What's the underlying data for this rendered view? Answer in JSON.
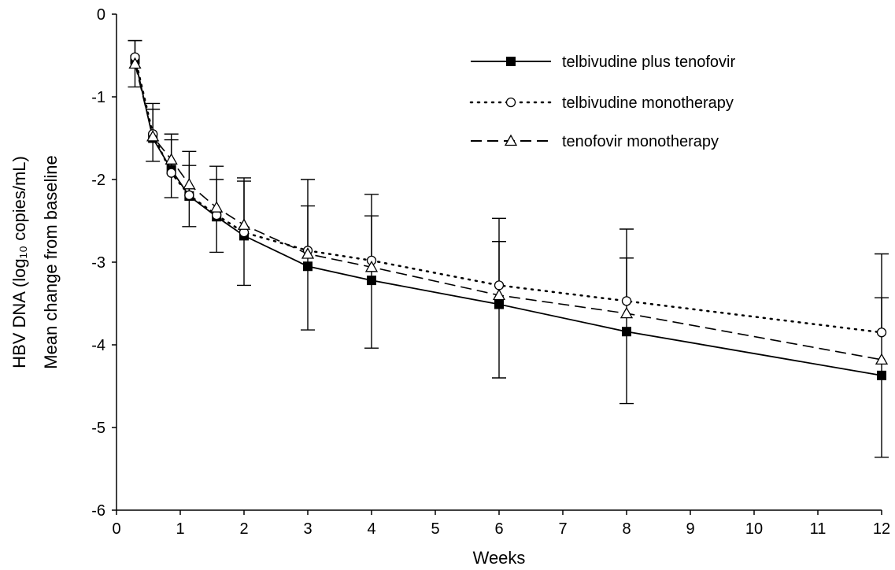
{
  "chart_data": {
    "type": "line",
    "title": "",
    "xlabel": "Weeks",
    "ylabel_line1": "HBV DNA (log₁₀ copies/mL)",
    "ylabel_line2": "Mean change from baseline",
    "xlim": [
      0,
      12
    ],
    "ylim": [
      -6,
      0
    ],
    "x_ticks": [
      0,
      1,
      2,
      3,
      4,
      5,
      6,
      7,
      8,
      9,
      10,
      11,
      12
    ],
    "y_ticks": [
      0,
      -1,
      -2,
      -3,
      -4,
      -5,
      -6
    ],
    "x_tick_labels": [
      "0",
      "1",
      "2",
      "3",
      "4",
      "5",
      "6",
      "7",
      "8",
      "9",
      "10",
      "11",
      "12"
    ],
    "y_tick_labels": [
      "0",
      "-1",
      "-2",
      "-3",
      "-4",
      "-5",
      "-6"
    ],
    "grid": false,
    "legend_position": "top-right",
    "series": [
      {
        "name": "telbivudine plus tenofovir",
        "line_style": "solid",
        "marker": "filled-square",
        "color": "#000000",
        "x": [
          0.29,
          0.57,
          0.86,
          1.14,
          1.57,
          2,
          3,
          4,
          6,
          8,
          12
        ],
        "y": [
          -0.55,
          -1.5,
          -1.88,
          -2.2,
          -2.45,
          -2.68,
          -3.05,
          -3.22,
          -3.51,
          -3.84,
          -4.37
        ],
        "error_low": [
          -0.88,
          -1.78,
          -2.22,
          -2.57,
          -2.88,
          -3.28,
          -3.82,
          -4.04,
          -4.4,
          -4.71,
          -5.36
        ],
        "error_high": [
          -0.32,
          -1.15,
          -1.52,
          -1.83,
          -2.0,
          -2.02,
          -2.32,
          -2.44,
          -2.75,
          -2.95,
          -3.43
        ]
      },
      {
        "name": "telbivudine monotherapy",
        "line_style": "dotted",
        "marker": "open-circle",
        "color": "#000000",
        "x": [
          0.29,
          0.57,
          0.86,
          1.14,
          1.57,
          2,
          3,
          4,
          6,
          8,
          12
        ],
        "y": [
          -0.52,
          -1.45,
          -1.92,
          -2.19,
          -2.43,
          -2.64,
          -2.86,
          -2.98,
          -3.28,
          -3.47,
          -3.85
        ],
        "error_low": [],
        "error_high": [
          -0.32,
          -1.08,
          -1.45,
          -1.66,
          -1.84,
          -1.98,
          -2.0,
          -2.18,
          -2.47,
          -2.6,
          -2.9
        ]
      },
      {
        "name": "tenofovir monotherapy",
        "line_style": "dashed",
        "marker": "open-triangle",
        "color": "#000000",
        "x": [
          0.29,
          0.57,
          0.86,
          1.14,
          1.57,
          2,
          3,
          4,
          6,
          8,
          12
        ],
        "y": [
          -0.6,
          -1.48,
          -1.76,
          -2.06,
          -2.34,
          -2.55,
          -2.9,
          -3.06,
          -3.4,
          -3.62,
          -4.18
        ],
        "error_low": [],
        "error_high": []
      }
    ]
  }
}
